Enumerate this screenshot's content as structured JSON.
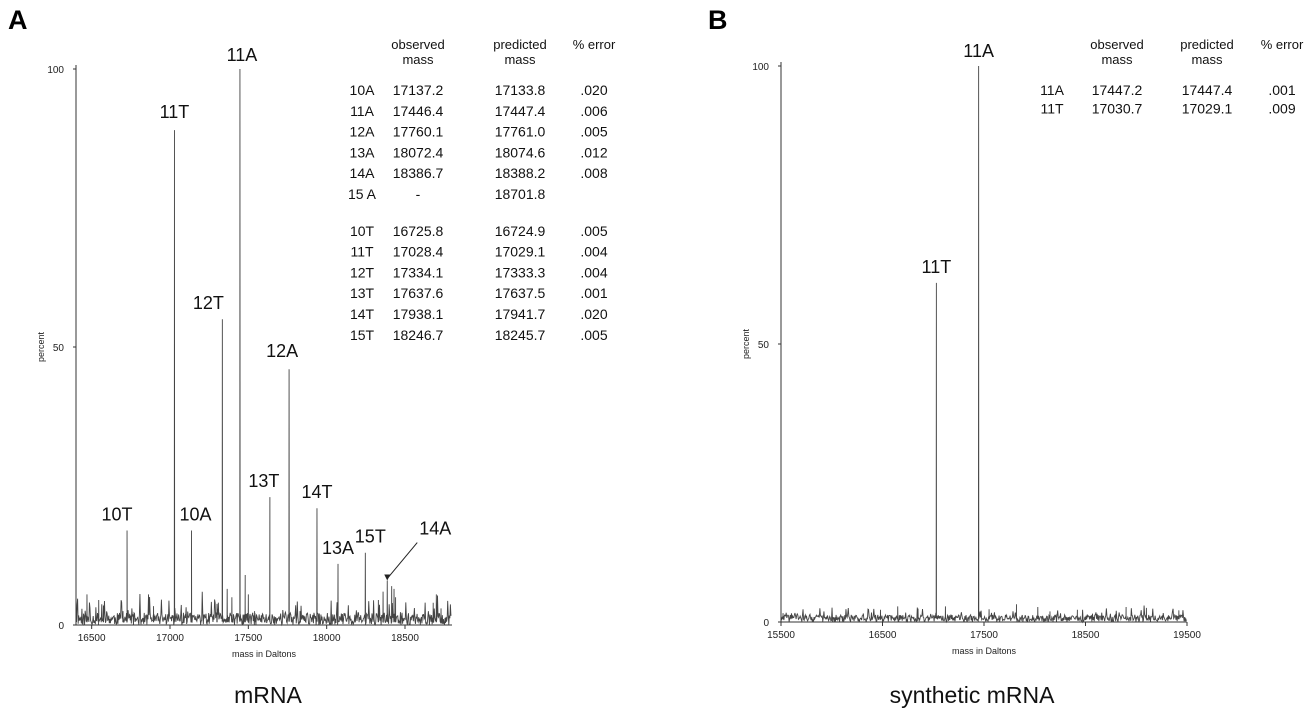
{
  "chart_data": [
    {
      "panel": "A",
      "type": "line",
      "title": "mRNA",
      "xlabel": "mass in Daltons",
      "ylabel": "percent",
      "xlim": [
        16400,
        18800
      ],
      "ylim": [
        0,
        100
      ],
      "x_ticks": [
        16500,
        17000,
        17500,
        18000,
        18500
      ],
      "y_ticks": [
        0,
        50,
        100
      ],
      "peaks": [
        {
          "label": "10T",
          "x": 16725.8,
          "y": 17
        },
        {
          "label": "11T",
          "x": 17028.4,
          "y": 89
        },
        {
          "label": "10A",
          "x": 17137.2,
          "y": 17
        },
        {
          "label": "12T",
          "x": 17334.1,
          "y": 55
        },
        {
          "label": "11A",
          "x": 17446.4,
          "y": 100
        },
        {
          "label": "13T",
          "x": 17637.6,
          "y": 23
        },
        {
          "label": "12A",
          "x": 17760.1,
          "y": 46
        },
        {
          "label": "14T",
          "x": 17938.1,
          "y": 21
        },
        {
          "label": "13A",
          "x": 18072.4,
          "y": 11
        },
        {
          "label": "15T",
          "x": 18246.7,
          "y": 13
        },
        {
          "label": "14A",
          "x": 18386.7,
          "y": 8
        }
      ],
      "table": {
        "headers": [
          [
            "",
            ""
          ],
          [
            "observed",
            "mass"
          ],
          [
            "predicted",
            "mass"
          ],
          [
            "% error",
            ""
          ]
        ],
        "rows": [
          [
            "10A",
            "17137.2",
            "17133.8",
            ".020"
          ],
          [
            "11A",
            "17446.4",
            "17447.4",
            ".006"
          ],
          [
            "12A",
            "17760.1",
            "17761.0",
            ".005"
          ],
          [
            "13A",
            "18072.4",
            "18074.6",
            ".012"
          ],
          [
            "14A",
            "18386.7",
            "18388.2",
            ".008"
          ],
          [
            "15 A",
            "-",
            "18701.8",
            ""
          ],
          [
            "10T",
            "16725.8",
            "16724.9",
            ".005"
          ],
          [
            "11T",
            "17028.4",
            "17029.1",
            ".004"
          ],
          [
            "12T",
            "17334.1",
            "17333.3",
            ".004"
          ],
          [
            "13T",
            "17637.6",
            "17637.5",
            ".001"
          ],
          [
            "14T",
            "17938.1",
            "17941.7",
            ".020"
          ],
          [
            "15T",
            "18246.7",
            "18245.7",
            ".005"
          ]
        ]
      }
    },
    {
      "panel": "B",
      "type": "line",
      "title": "synthetic mRNA",
      "xlabel": "mass in Daltons",
      "ylabel": "percent",
      "xlim": [
        15500,
        19500
      ],
      "ylim": [
        0,
        100
      ],
      "x_ticks": [
        15500,
        16500,
        17500,
        18500,
        19500
      ],
      "y_ticks": [
        0,
        50,
        100
      ],
      "peaks": [
        {
          "label": "11T",
          "x": 17030.7,
          "y": 61
        },
        {
          "label": "11A",
          "x": 17447.2,
          "y": 100
        }
      ],
      "table": {
        "headers": [
          [
            "",
            ""
          ],
          [
            "observed",
            "mass"
          ],
          [
            "predicted",
            "mass"
          ],
          [
            "% error",
            ""
          ]
        ],
        "rows": [
          [
            "11A",
            "17447.2",
            "17447.4",
            ".001"
          ],
          [
            "11T",
            "17030.7",
            "17029.1",
            ".009"
          ]
        ]
      }
    }
  ]
}
